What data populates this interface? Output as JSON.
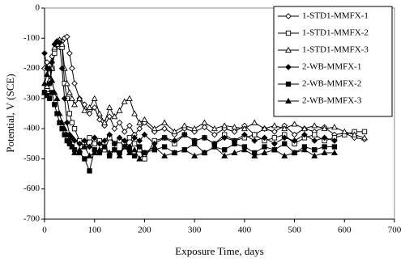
{
  "chart_data": {
    "type": "line",
    "xlabel": "Exposure Time, days",
    "ylabel": "Potential, V (SCE)",
    "xlim": [
      0,
      700
    ],
    "xticks": [
      0,
      100,
      200,
      300,
      400,
      500,
      600,
      700
    ],
    "ylim": [
      -700,
      0
    ],
    "yticks": [
      0,
      -100,
      -200,
      -300,
      -400,
      -500,
      -600,
      -700
    ],
    "grid": false,
    "legend": "upper right",
    "x": [
      0,
      5,
      10,
      15,
      20,
      25,
      30,
      35,
      40,
      45,
      50,
      55,
      60,
      70,
      80,
      90,
      100,
      110,
      120,
      130,
      140,
      150,
      160,
      170,
      180,
      190,
      200,
      220,
      240,
      260,
      280,
      300,
      320,
      340,
      360,
      380,
      400,
      420,
      440,
      460,
      480,
      500,
      520,
      540,
      560,
      580,
      600,
      620,
      640
    ],
    "series": [
      {
        "name": "1-STD1-MMFX-1",
        "color": "#000000",
        "marker": "diamond",
        "filled": false,
        "values": [
          -200,
          -180,
          -190,
          -160,
          -140,
          -120,
          -130,
          -110,
          -100,
          -95,
          -150,
          -200,
          -250,
          -300,
          -320,
          -350,
          -330,
          -370,
          -390,
          -360,
          -400,
          -380,
          -410,
          -390,
          -420,
          -400,
          -380,
          -410,
          -400,
          -420,
          -400,
          -410,
          -395,
          -420,
          -400,
          -410,
          -390,
          -420,
          -400,
          -410,
          -390,
          -420,
          -400,
          -410,
          -395,
          -420,
          -415,
          -430,
          -435
        ]
      },
      {
        "name": "1-STD1-MMFX-2",
        "color": "#000000",
        "marker": "square",
        "filled": false,
        "values": [
          -280,
          -270,
          -250,
          -200,
          -150,
          -120,
          -110,
          -130,
          -250,
          -300,
          -350,
          -380,
          -400,
          -440,
          -460,
          -430,
          -450,
          -440,
          -470,
          -430,
          -450,
          -440,
          -460,
          -430,
          -450,
          -470,
          -500,
          -440,
          -430,
          -450,
          -420,
          -440,
          -430,
          -450,
          -420,
          -440,
          -430,
          -420,
          -440,
          -430,
          -420,
          -450,
          -430,
          -420,
          -440,
          -430,
          -420,
          -410,
          -410
        ]
      },
      {
        "name": "1-STD1-MMFX-3",
        "color": "#000000",
        "marker": "triangle",
        "filled": false,
        "values": [
          -280,
          -260,
          -240,
          -200,
          -130,
          -110,
          -105,
          -120,
          -200,
          -250,
          -280,
          -300,
          -320,
          -300,
          -340,
          -330,
          -300,
          -350,
          -380,
          -330,
          -360,
          -340,
          -310,
          -300,
          -350,
          -380,
          -370,
          -400,
          -380,
          -410,
          -390,
          -400,
          -380,
          -400,
          -390,
          -395,
          -400,
          -380,
          -400,
          -390,
          -400,
          -385,
          -400,
          -390,
          -400,
          -395,
          -410,
          -420,
          -430
        ]
      },
      {
        "name": "2-WB-MMFX-1",
        "color": "#000000",
        "marker": "diamond",
        "filled": true,
        "values": [
          -150,
          -200,
          -250,
          -180,
          -120,
          -110,
          -115,
          -200,
          -300,
          -380,
          -420,
          -430,
          -440,
          -450,
          -440,
          -460,
          -430,
          -450,
          -440,
          -420,
          -450,
          -430,
          -440,
          -460,
          -430,
          -440,
          -420,
          -450,
          -430,
          -440,
          -420,
          -440,
          -430,
          -450,
          -430,
          -440,
          -420,
          -440,
          -430,
          -450,
          -430,
          -440,
          -420,
          -440,
          -430,
          -440,
          null,
          null,
          null
        ]
      },
      {
        "name": "2-WB-MMFX-2",
        "color": "#000000",
        "marker": "square",
        "filled": true,
        "values": [
          -280,
          -290,
          -300,
          -280,
          -320,
          -350,
          -380,
          -400,
          -420,
          -440,
          -450,
          -460,
          -470,
          -480,
          -500,
          -540,
          -470,
          -480,
          -460,
          -490,
          -470,
          -480,
          -460,
          -470,
          -490,
          -460,
          -480,
          -470,
          -460,
          -480,
          -470,
          -450,
          -480,
          -460,
          -470,
          -450,
          -460,
          -480,
          -460,
          -470,
          -450,
          -480,
          -460,
          -470,
          -460,
          -460,
          null,
          null,
          null
        ]
      },
      {
        "name": "2-WB-MMFX-3",
        "color": "#000000",
        "marker": "triangle",
        "filled": true,
        "values": [
          -250,
          -220,
          -200,
          -240,
          -280,
          -300,
          -350,
          -380,
          -400,
          -420,
          -440,
          -460,
          -480,
          -470,
          -460,
          -490,
          -480,
          -470,
          -460,
          -480,
          -470,
          -490,
          -460,
          -480,
          -470,
          -500,
          -480,
          -460,
          -490,
          -480,
          -470,
          -490,
          -480,
          -460,
          -490,
          -480,
          -470,
          -490,
          -480,
          -470,
          -490,
          -480,
          -470,
          -490,
          -480,
          -480,
          null,
          null,
          null
        ]
      }
    ]
  }
}
